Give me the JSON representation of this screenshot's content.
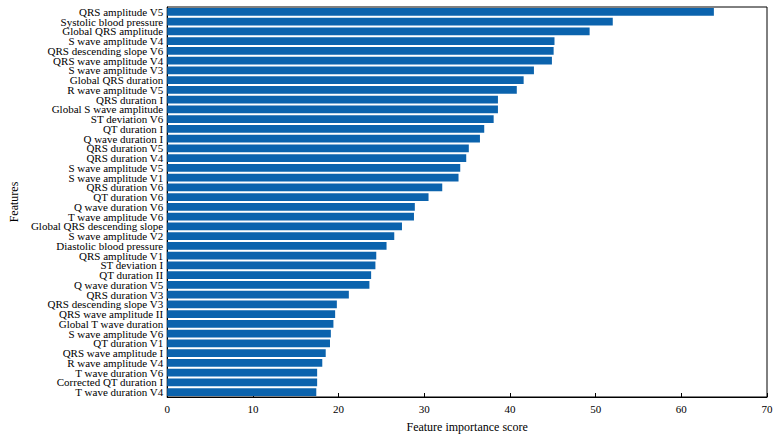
{
  "chart_data": {
    "type": "bar",
    "orientation": "horizontal",
    "x_label": "Feature importance score",
    "y_label": "Features",
    "categories": [
      "QRS amplitude V5",
      "Systolic blood pressure",
      "Global QRS amplitude",
      "S wave amplitude V4",
      "QRS descending slope V6",
      "QRS wave amplitude V4",
      "S wave amplitude V3",
      "Global QRS duration",
      "R wave amplitude V5",
      "QRS duration I",
      "Global S wave amplitude",
      "ST deviation V6",
      "QT duration I",
      "Q wave duration I",
      "QRS duration V5",
      "QRS duration V4",
      "S wave amplitude V5",
      "S wave amplitude V1",
      "QRS duration V6",
      "QT duration V6",
      "Q wave duration V6",
      "T wave amplitude V6",
      "Global QRS descending slope",
      "S wave amplitude V2",
      "Diastolic blood pressure",
      "QRS amplitude V1",
      "ST deviation I",
      "QT duration II",
      "Q wave duration V5",
      "QRS duration V3",
      "QRS descending slope V3",
      "QRS wave amplitude II",
      "Global T wave duration",
      "S wave amplitude V6",
      "QT duration V1",
      "QRS wave amplitude I",
      "R wave amplitude V4",
      "T wave duration V6",
      "Corrected QT duration I",
      "T wave duration V4"
    ],
    "values": [
      63.8,
      52.0,
      49.3,
      45.2,
      45.1,
      44.9,
      42.8,
      41.6,
      40.8,
      38.6,
      38.6,
      38.1,
      37.0,
      36.5,
      35.2,
      34.9,
      34.2,
      34.0,
      32.1,
      30.5,
      28.9,
      28.8,
      27.4,
      26.5,
      25.6,
      24.4,
      24.3,
      23.8,
      23.6,
      21.2,
      19.8,
      19.6,
      19.4,
      19.1,
      19.0,
      18.5,
      18.1,
      17.5,
      17.5,
      17.4
    ],
    "color": "#0b63ad",
    "xlim": [
      0,
      70
    ],
    "xticks": [
      0,
      10,
      20,
      30,
      40,
      50,
      60,
      70
    ],
    "grid": false
  }
}
